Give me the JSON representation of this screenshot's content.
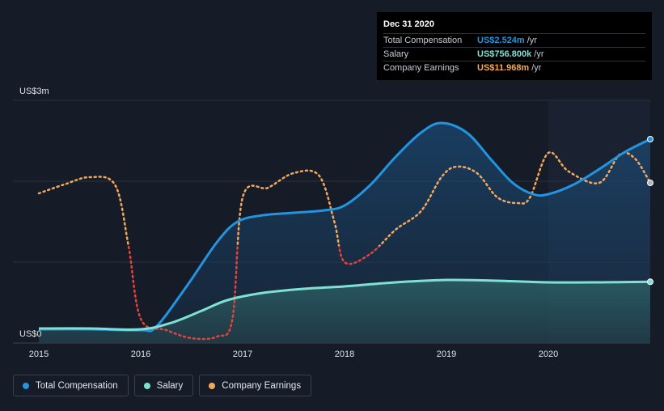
{
  "tooltip": {
    "date": "Dec 31 2020",
    "rows": [
      {
        "label": "Total Compensation",
        "value": "US$2.524m",
        "unit": "/yr",
        "color": "#2394df"
      },
      {
        "label": "Salary",
        "value": "US$756.800k",
        "unit": "/yr",
        "color": "#7fe0d4"
      },
      {
        "label": "Company Earnings",
        "value": "US$11.968m",
        "unit": "/yr",
        "color": "#f4a85c"
      }
    ]
  },
  "legend": [
    {
      "label": "Total Compensation",
      "color": "#2394df"
    },
    {
      "label": "Salary",
      "color": "#7fe0d4"
    },
    {
      "label": "Company Earnings",
      "color": "#f4a85c"
    }
  ],
  "chart_data": {
    "type": "line",
    "y_top_label": "US$3m",
    "y_bottom_label": "US$0",
    "ylim": [
      0,
      3.0
    ],
    "x_ticks": [
      "2015",
      "2016",
      "2017",
      "2018",
      "2019",
      "2020"
    ],
    "xlim": [
      2015.0,
      2021.0
    ],
    "series": [
      {
        "name": "Total Compensation",
        "color": "#2394df",
        "unit": "US$m",
        "x": [
          2015.0,
          2015.5,
          2016.0,
          2016.15,
          2016.45,
          2016.75,
          2016.95,
          2017.2,
          2017.5,
          2017.8,
          2018.0,
          2018.25,
          2018.5,
          2018.75,
          2018.95,
          2019.2,
          2019.45,
          2019.65,
          2019.85,
          2020.0,
          2020.25,
          2020.5,
          2020.75,
          2021.0
        ],
        "y": [
          0.17,
          0.17,
          0.16,
          0.2,
          0.7,
          1.25,
          1.5,
          1.58,
          1.61,
          1.64,
          1.7,
          1.95,
          2.3,
          2.6,
          2.72,
          2.6,
          2.25,
          1.98,
          1.84,
          1.84,
          1.96,
          2.15,
          2.36,
          2.52
        ]
      },
      {
        "name": "Salary",
        "color": "#7fe0d4",
        "unit": "US$m",
        "x": [
          2015.0,
          2015.5,
          2016.0,
          2016.3,
          2016.6,
          2016.85,
          2017.2,
          2017.6,
          2018.0,
          2018.5,
          2019.0,
          2019.5,
          2020.0,
          2020.5,
          2021.0
        ],
        "y": [
          0.18,
          0.18,
          0.17,
          0.25,
          0.4,
          0.53,
          0.62,
          0.67,
          0.7,
          0.75,
          0.78,
          0.77,
          0.75,
          0.75,
          0.757
        ]
      },
      {
        "name": "Company Earnings",
        "unit": "scaled to compensation axis",
        "color_positive": "#f4a85c",
        "color_negative": "#e8413c",
        "x": [
          2015.0,
          2015.25,
          2015.5,
          2015.75,
          2015.88,
          2016.0,
          2016.25,
          2016.5,
          2016.75,
          2016.9,
          2017.0,
          2017.25,
          2017.5,
          2017.75,
          2017.9,
          2018.0,
          2018.25,
          2018.5,
          2018.75,
          2018.95,
          2019.1,
          2019.3,
          2019.5,
          2019.7,
          2019.82,
          2020.0,
          2020.2,
          2020.5,
          2020.7,
          2020.85,
          2021.0
        ],
        "y": [
          1.85,
          1.96,
          2.05,
          1.95,
          1.2,
          0.3,
          0.16,
          0.06,
          0.08,
          0.3,
          1.8,
          1.92,
          2.1,
          2.07,
          1.5,
          1.0,
          1.1,
          1.4,
          1.63,
          2.05,
          2.18,
          2.1,
          1.8,
          1.73,
          1.8,
          2.35,
          2.12,
          1.98,
          2.33,
          2.28,
          1.98
        ]
      }
    ],
    "grid": true,
    "legend_position": "bottom-left"
  }
}
